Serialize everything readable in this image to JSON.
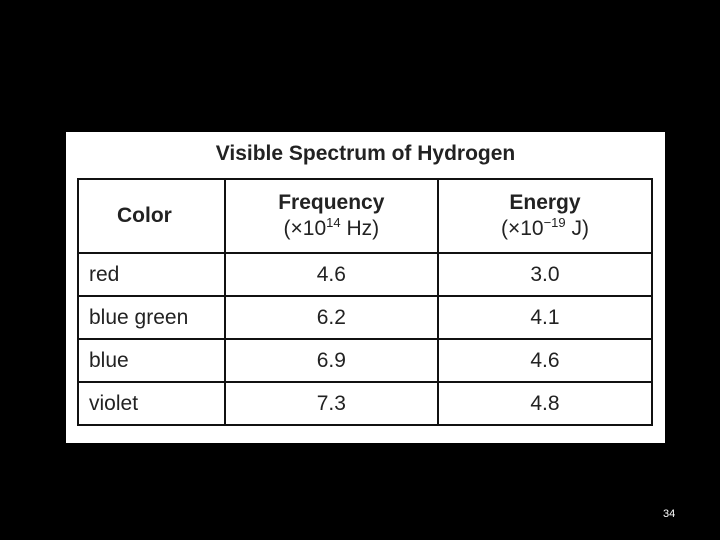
{
  "table": {
    "title": "Visible Spectrum of Hydrogen",
    "headers": [
      {
        "name": "Color"
      },
      {
        "name": "Frequency",
        "unit_open": "(×10",
        "unit_exp": "14",
        "unit_close": " Hz)"
      },
      {
        "name": "Energy",
        "unit_open": "(×10",
        "unit_exp": "−19",
        "unit_close": " J)"
      }
    ],
    "rows": [
      [
        "red",
        "4.6",
        "3.0"
      ],
      [
        "blue green",
        "6.2",
        "4.1"
      ],
      [
        "blue",
        "6.9",
        "4.6"
      ],
      [
        "violet",
        "7.3",
        "4.8"
      ]
    ]
  },
  "page_number": "34"
}
